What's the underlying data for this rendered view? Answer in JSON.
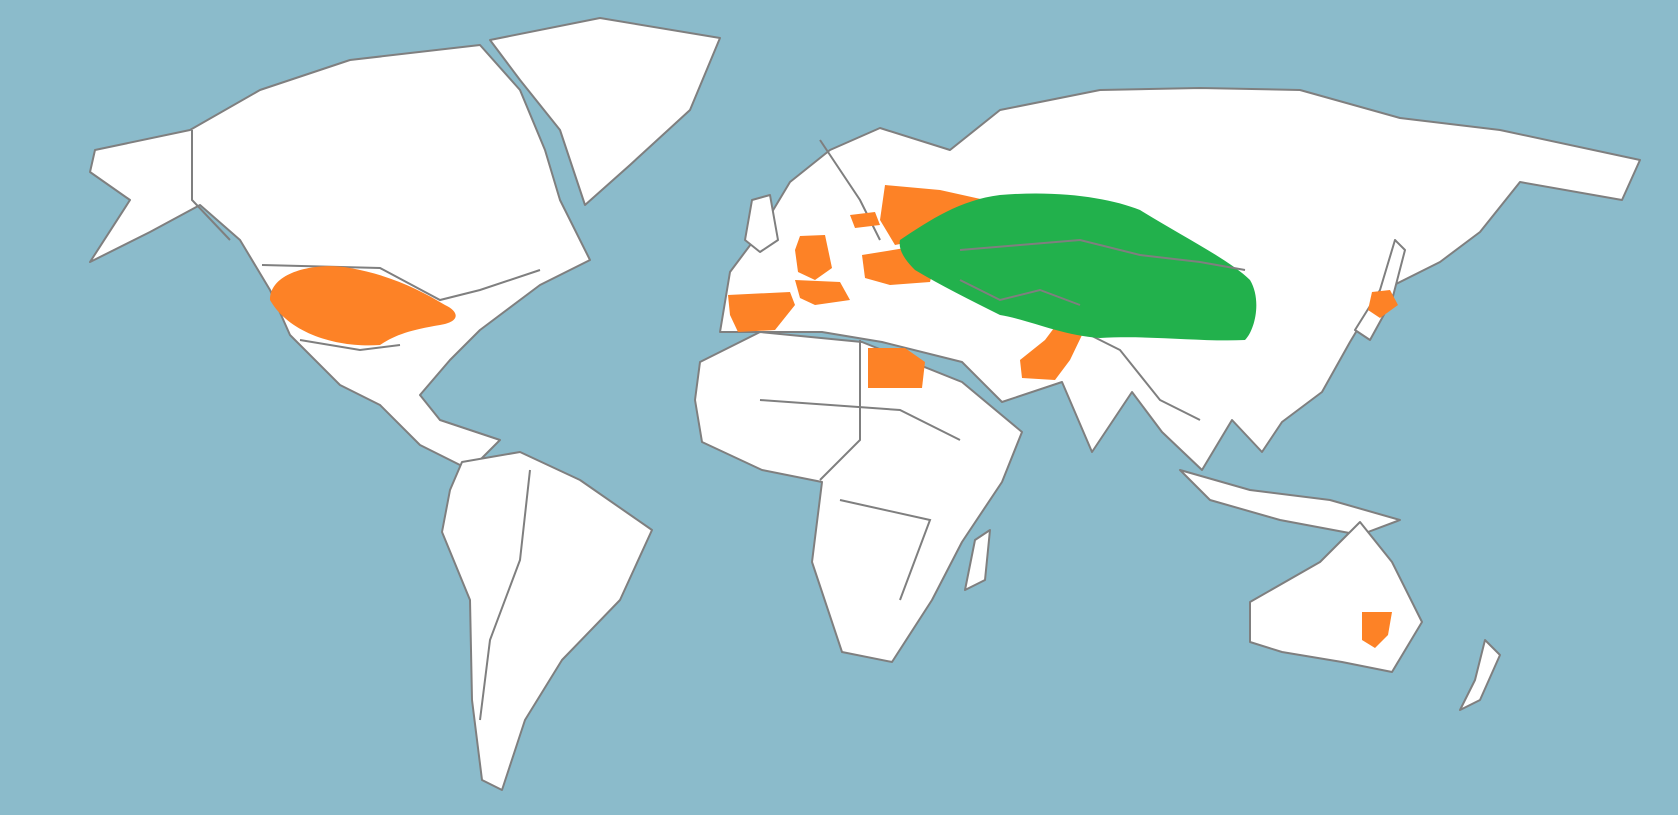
{
  "map": {
    "colors": {
      "ocean": "#8bbbcb",
      "land": "#ffffff",
      "border": "#7f7f7f",
      "highlight_orange": "#fd8226",
      "highlight_green": "#22b14c"
    }
  }
}
